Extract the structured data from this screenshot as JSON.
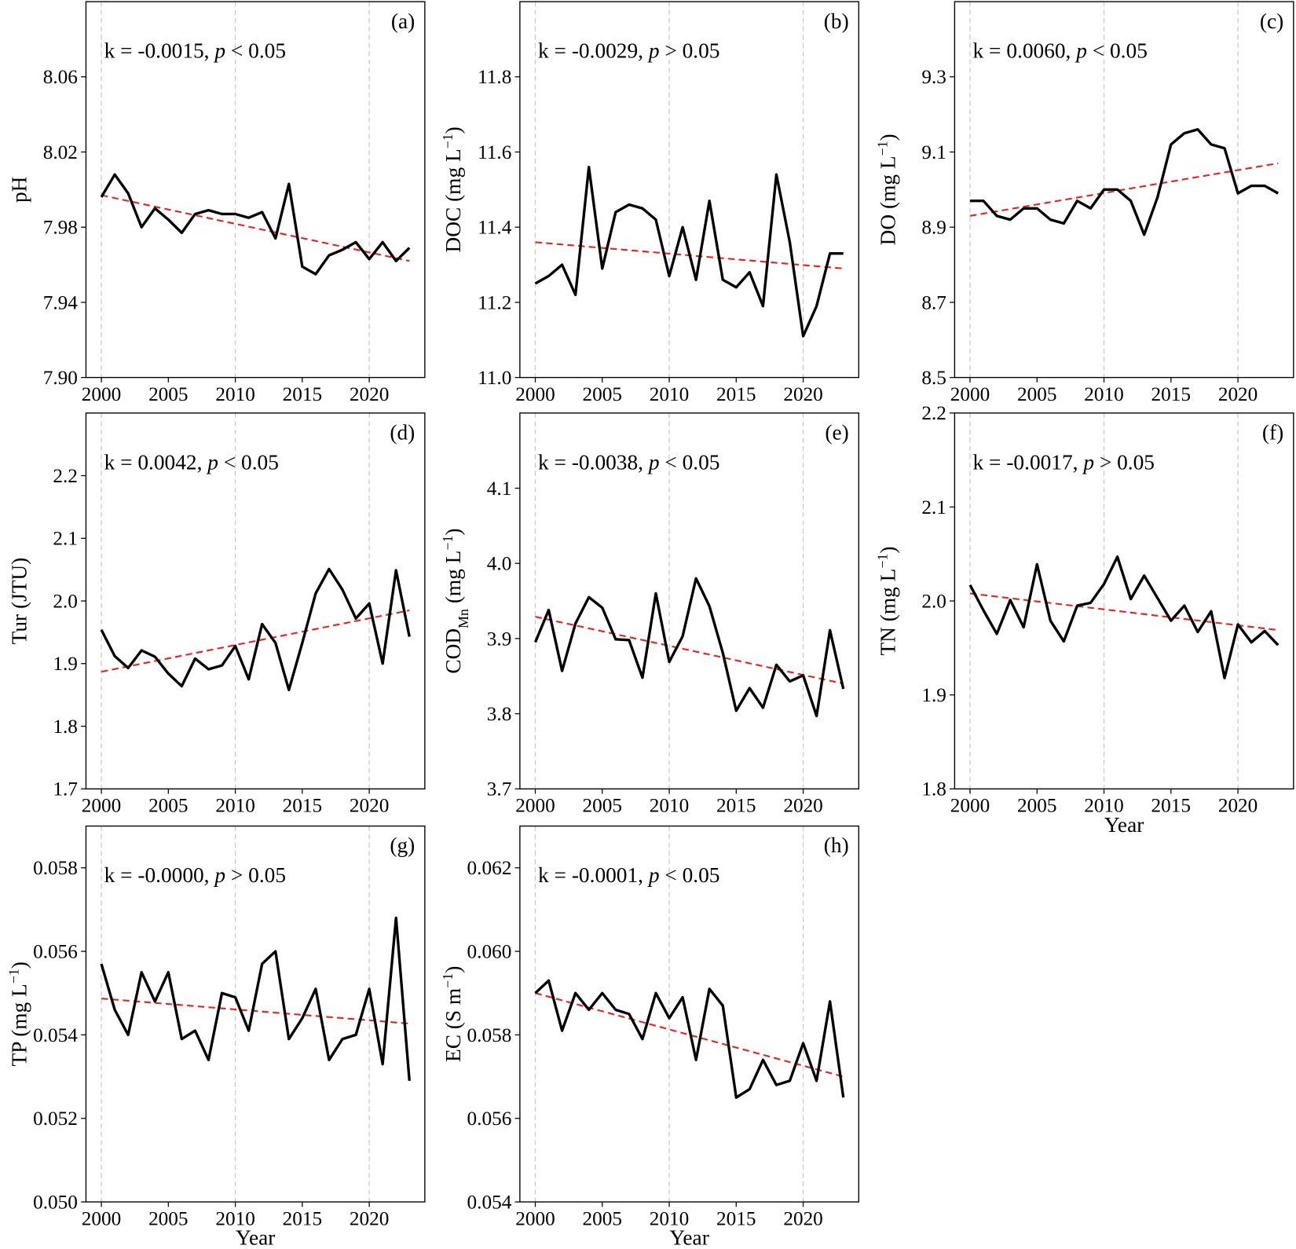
{
  "chart_data": [
    {
      "type": "line",
      "panel": "(a)",
      "annotation": [
        {
          "text": "k = -0.0015, "
        },
        {
          "text": "p",
          "italic": true
        },
        {
          "text": " < 0.05"
        }
      ],
      "ylabel": [
        {
          "text": "pH"
        }
      ],
      "x": [
        2000,
        2001,
        2002,
        2003,
        2004,
        2005,
        2006,
        2007,
        2008,
        2009,
        2010,
        2011,
        2012,
        2013,
        2014,
        2015,
        2016,
        2017,
        2018,
        2019,
        2020,
        2021,
        2022,
        2023
      ],
      "values": [
        7.996,
        8.008,
        7.998,
        7.98,
        7.99,
        7.984,
        7.977,
        7.987,
        7.989,
        7.987,
        7.987,
        7.985,
        7.988,
        7.974,
        8.003,
        7.959,
        7.955,
        7.965,
        7.968,
        7.972,
        7.963,
        7.972,
        7.962,
        7.969
      ],
      "color": "#000000",
      "trend": {
        "x": [
          2000,
          2023
        ],
        "values": [
          7.997,
          7.962
        ],
        "color": "#e8221f"
      },
      "xlim": [
        1998.85,
        2024.15
      ],
      "xticks": [
        2000,
        2005,
        2010,
        2015,
        2020
      ],
      "xgrid": [
        2000,
        2010,
        2020
      ],
      "ylim": [
        7.9,
        8.1
      ],
      "yticks": [
        {
          "value": 7.9,
          "label": "7.90"
        },
        7.94,
        7.98,
        8.02,
        8.06
      ]
    },
    {
      "type": "line",
      "panel": "(b)",
      "annotation": [
        {
          "text": "k = -0.0029, "
        },
        {
          "text": "p",
          "italic": true
        },
        {
          "text": " > 0.05"
        }
      ],
      "ylabel": [
        {
          "text": "DOC (mg L"
        },
        {
          "text": "−1",
          "sup": true
        },
        {
          "text": ")"
        }
      ],
      "x": [
        2000,
        2001,
        2002,
        2003,
        2004,
        2005,
        2006,
        2007,
        2008,
        2009,
        2010,
        2011,
        2012,
        2013,
        2014,
        2015,
        2016,
        2017,
        2018,
        2019,
        2020,
        2021,
        2022,
        2023
      ],
      "values": [
        11.25,
        11.27,
        11.3,
        11.22,
        11.56,
        11.29,
        11.44,
        11.46,
        11.45,
        11.42,
        11.27,
        11.4,
        11.26,
        11.47,
        11.26,
        11.24,
        11.28,
        11.19,
        11.54,
        11.36,
        11.11,
        11.19,
        11.33,
        11.33
      ],
      "color": "#000000",
      "trend": {
        "x": [
          2000,
          2023
        ],
        "values": [
          11.36,
          11.29
        ],
        "color": "#e8221f"
      },
      "xlim": [
        1998.85,
        2024.15
      ],
      "xticks": [
        2000,
        2005,
        2010,
        2015,
        2020
      ],
      "xgrid": [
        2000,
        2010,
        2020
      ],
      "ylim": [
        11.0,
        12.0
      ],
      "yticks": [
        {
          "value": 11.0,
          "label": "11.0"
        },
        11.2,
        11.4,
        11.6,
        11.8
      ]
    },
    {
      "type": "line",
      "panel": "(c)",
      "annotation": [
        {
          "text": "k = 0.0060, "
        },
        {
          "text": "p",
          "italic": true
        },
        {
          "text": " < 0.05"
        }
      ],
      "ylabel": [
        {
          "text": "DO (mg L"
        },
        {
          "text": "−1",
          "sup": true
        },
        {
          "text": ")"
        }
      ],
      "x": [
        2000,
        2001,
        2002,
        2003,
        2004,
        2005,
        2006,
        2007,
        2008,
        2009,
        2010,
        2011,
        2012,
        2013,
        2014,
        2015,
        2016,
        2017,
        2018,
        2019,
        2020,
        2021,
        2022,
        2023
      ],
      "values": [
        8.97,
        8.97,
        8.93,
        8.92,
        8.95,
        8.95,
        8.92,
        8.91,
        8.97,
        8.95,
        9.0,
        9.0,
        8.97,
        8.88,
        8.98,
        9.12,
        9.15,
        9.16,
        9.12,
        9.11,
        8.99,
        9.01,
        9.01,
        8.99
      ],
      "color": "#000000",
      "trend": {
        "x": [
          2000,
          2023
        ],
        "values": [
          8.93,
          9.07
        ],
        "color": "#e8221f"
      },
      "xlim": [
        1998.85,
        2024.15
      ],
      "xticks": [
        2000,
        2005,
        2010,
        2015,
        2020
      ],
      "xgrid": [
        2000,
        2010,
        2020
      ],
      "ylim": [
        8.5,
        9.5
      ],
      "yticks": [
        8.5,
        8.7,
        8.9,
        9.1,
        9.3
      ]
    },
    {
      "type": "line",
      "panel": "(d)",
      "annotation": [
        {
          "text": "k = 0.0042, "
        },
        {
          "text": "p",
          "italic": true
        },
        {
          "text": " < 0.05"
        }
      ],
      "ylabel": [
        {
          "text": "Tur (JTU)"
        }
      ],
      "x": [
        2000,
        2001,
        2002,
        2003,
        2004,
        2005,
        2006,
        2007,
        2008,
        2009,
        2010,
        2011,
        2012,
        2013,
        2014,
        2015,
        2016,
        2017,
        2018,
        2019,
        2020,
        2021,
        2022,
        2023
      ],
      "values": [
        1.954,
        1.912,
        1.893,
        1.921,
        1.911,
        1.884,
        1.864,
        1.908,
        1.891,
        1.897,
        1.928,
        1.875,
        1.963,
        1.933,
        1.858,
        1.933,
        2.012,
        2.051,
        2.018,
        1.972,
        1.996,
        1.9,
        2.049,
        1.943
      ],
      "color": "#000000",
      "trend": {
        "x": [
          2000,
          2023
        ],
        "values": [
          1.887,
          1.985
        ],
        "color": "#e8221f"
      },
      "xlim": [
        1998.85,
        2024.15
      ],
      "xticks": [
        2000,
        2005,
        2010,
        2015,
        2020
      ],
      "xgrid": [
        2000,
        2010,
        2020
      ],
      "ylim": [
        1.7,
        2.3
      ],
      "yticks": [
        1.7,
        1.8,
        1.9,
        {
          "value": 2.0,
          "label": "2.0"
        },
        2.1,
        2.2
      ]
    },
    {
      "type": "line",
      "panel": "(e)",
      "annotation": [
        {
          "text": "k = -0.0038, "
        },
        {
          "text": "p",
          "italic": true
        },
        {
          "text": " < 0.05"
        }
      ],
      "ylabel": [
        {
          "text": "COD"
        },
        {
          "text": "Mn",
          "sub": true
        },
        {
          "text": " (mg L"
        },
        {
          "text": "−1",
          "sup": true
        },
        {
          "text": ")"
        }
      ],
      "x": [
        2000,
        2001,
        2002,
        2003,
        2004,
        2005,
        2006,
        2007,
        2008,
        2009,
        2010,
        2011,
        2012,
        2013,
        2014,
        2015,
        2016,
        2017,
        2018,
        2019,
        2020,
        2021,
        2022,
        2023
      ],
      "values": [
        3.895,
        3.938,
        3.857,
        3.92,
        3.955,
        3.941,
        3.899,
        3.898,
        3.848,
        3.96,
        3.869,
        3.903,
        3.98,
        3.943,
        3.881,
        3.804,
        3.834,
        3.808,
        3.865,
        3.843,
        3.851,
        3.797,
        3.911,
        3.833
      ],
      "color": "#000000",
      "trend": {
        "x": [
          2000,
          2023
        ],
        "values": [
          3.929,
          3.84
        ],
        "color": "#e8221f"
      },
      "xlim": [
        1998.85,
        2024.15
      ],
      "xticks": [
        2000,
        2005,
        2010,
        2015,
        2020
      ],
      "xgrid": [
        2000,
        2010,
        2020
      ],
      "ylim": [
        3.7,
        4.2
      ],
      "yticks": [
        3.7,
        3.8,
        3.9,
        {
          "value": 4.0,
          "label": "4.0"
        },
        4.1
      ]
    },
    {
      "type": "line",
      "panel": "(f)",
      "annotation": [
        {
          "text": "k = -0.0017, "
        },
        {
          "text": "p",
          "italic": true
        },
        {
          "text": " > 0.05"
        }
      ],
      "ylabel": [
        {
          "text": "TN (mg L"
        },
        {
          "text": "−1",
          "sup": true
        },
        {
          "text": ")"
        }
      ],
      "xlabel": "Year",
      "x": [
        2000,
        2001,
        2002,
        2003,
        2004,
        2005,
        2006,
        2007,
        2008,
        2009,
        2010,
        2011,
        2012,
        2013,
        2014,
        2015,
        2016,
        2017,
        2018,
        2019,
        2020,
        2021,
        2022,
        2023
      ],
      "values": [
        2.017,
        1.99,
        1.965,
        2.001,
        1.972,
        2.039,
        1.979,
        1.957,
        1.995,
        1.998,
        2.018,
        2.047,
        2.002,
        2.027,
        2.003,
        1.979,
        1.995,
        1.967,
        1.989,
        1.918,
        1.975,
        1.956,
        1.968,
        1.953
      ],
      "color": "#000000",
      "trend": {
        "x": [
          2000,
          2023
        ],
        "values": [
          2.008,
          1.969
        ],
        "color": "#e8221f"
      },
      "xlim": [
        1998.85,
        2024.15
      ],
      "xticks": [
        2000,
        2005,
        2010,
        2015,
        2020
      ],
      "xgrid": [
        2000,
        2010,
        2020
      ],
      "ylim": [
        1.8,
        2.2
      ],
      "yticks": [
        1.8,
        1.9,
        {
          "value": 2.0,
          "label": "2.0"
        },
        2.1,
        2.2
      ]
    },
    {
      "type": "line",
      "panel": "(g)",
      "annotation": [
        {
          "text": "k = -0.0000, "
        },
        {
          "text": "p",
          "italic": true
        },
        {
          "text": " > 0.05"
        }
      ],
      "ylabel": [
        {
          "text": "TP (mg L"
        },
        {
          "text": "−1",
          "sup": true
        },
        {
          "text": ")"
        }
      ],
      "xlabel": "Year",
      "x": [
        2000,
        2001,
        2002,
        2003,
        2004,
        2005,
        2006,
        2007,
        2008,
        2009,
        2010,
        2011,
        2012,
        2013,
        2014,
        2015,
        2016,
        2017,
        2018,
        2019,
        2020,
        2021,
        2022,
        2023
      ],
      "values": [
        0.0557,
        0.0546,
        0.054,
        0.0555,
        0.0548,
        0.0555,
        0.0539,
        0.0541,
        0.0534,
        0.055,
        0.0549,
        0.0541,
        0.0557,
        0.056,
        0.0539,
        0.0544,
        0.0551,
        0.0534,
        0.0539,
        0.054,
        0.0551,
        0.0533,
        0.0568,
        0.0529
      ],
      "color": "#000000",
      "trend": {
        "x": [
          2000,
          2023
        ],
        "values": [
          0.05487,
          0.05427
        ],
        "color": "#e8221f"
      },
      "xlim": [
        1998.85,
        2024.15
      ],
      "xticks": [
        2000,
        2005,
        2010,
        2015,
        2020
      ],
      "xgrid": [
        2000,
        2010,
        2020
      ],
      "ylim": [
        0.05,
        0.059
      ],
      "yticks": [
        {
          "value": 0.05,
          "label": "0.050"
        },
        {
          "value": 0.052,
          "label": "0.052"
        },
        {
          "value": 0.054,
          "label": "0.054"
        },
        {
          "value": 0.056,
          "label": "0.056"
        },
        {
          "value": 0.058,
          "label": "0.058"
        }
      ]
    },
    {
      "type": "line",
      "panel": "(h)",
      "annotation": [
        {
          "text": "k = -0.0001, "
        },
        {
          "text": "p",
          "italic": true
        },
        {
          "text": " < 0.05"
        }
      ],
      "ylabel": [
        {
          "text": "EC (S m"
        },
        {
          "text": "−1",
          "sup": true
        },
        {
          "text": ")"
        }
      ],
      "xlabel": "Year",
      "x": [
        2000,
        2001,
        2002,
        2003,
        2004,
        2005,
        2006,
        2007,
        2008,
        2009,
        2010,
        2011,
        2012,
        2013,
        2014,
        2015,
        2016,
        2017,
        2018,
        2019,
        2020,
        2021,
        2022,
        2023
      ],
      "values": [
        0.059,
        0.0593,
        0.0581,
        0.059,
        0.0586,
        0.059,
        0.0586,
        0.0585,
        0.0579,
        0.059,
        0.0584,
        0.0589,
        0.0574,
        0.0591,
        0.0587,
        0.0565,
        0.0567,
        0.0574,
        0.0568,
        0.0569,
        0.0578,
        0.0569,
        0.0588,
        0.0565
      ],
      "color": "#000000",
      "trend": {
        "x": [
          2000,
          2023
        ],
        "values": [
          0.059,
          0.057
        ],
        "color": "#e8221f"
      },
      "xlim": [
        1998.85,
        2024.15
      ],
      "xticks": [
        2000,
        2005,
        2010,
        2015,
        2020
      ],
      "xgrid": [
        2000,
        2010,
        2020
      ],
      "ylim": [
        0.054,
        0.063
      ],
      "yticks": [
        {
          "value": 0.054,
          "label": "0.054"
        },
        {
          "value": 0.056,
          "label": "0.056"
        },
        {
          "value": 0.058,
          "label": "0.058"
        },
        {
          "value": 0.06,
          "label": "0.060"
        },
        {
          "value": 0.062,
          "label": "0.062"
        }
      ]
    }
  ]
}
